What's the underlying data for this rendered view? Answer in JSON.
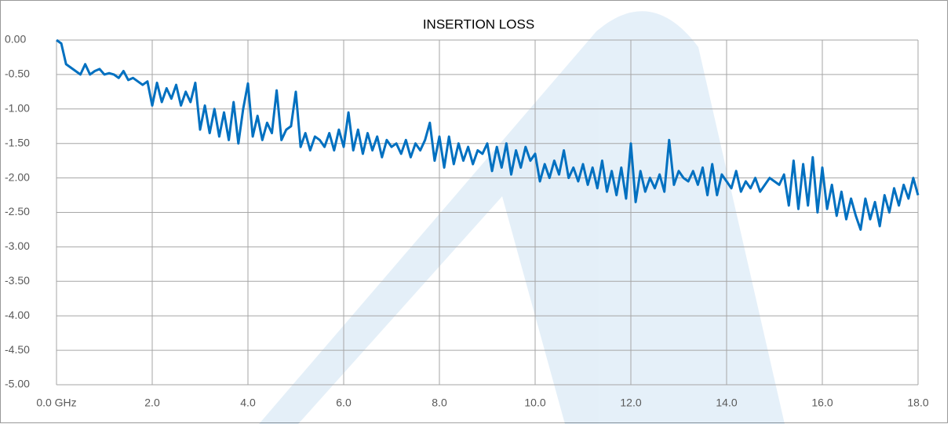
{
  "chart_data": {
    "type": "line",
    "title": "INSERTION LOSS",
    "x": [
      0,
      0.1,
      0.2,
      0.3,
      0.4,
      0.5,
      0.6,
      0.7,
      0.8,
      0.9,
      1,
      1.1,
      1.2,
      1.3,
      1.4,
      1.5,
      1.6,
      1.7,
      1.8,
      1.9,
      2,
      2.1,
      2.2,
      2.3,
      2.4,
      2.5,
      2.6,
      2.7,
      2.8,
      2.9,
      3,
      3.1,
      3.2,
      3.3,
      3.4,
      3.5,
      3.6,
      3.7,
      3.8,
      3.9,
      4,
      4.1,
      4.2,
      4.3,
      4.4,
      4.5,
      4.6,
      4.7,
      4.8,
      4.9,
      5,
      5.1,
      5.2,
      5.3,
      5.4,
      5.5,
      5.6,
      5.7,
      5.8,
      5.9,
      6,
      6.1,
      6.2,
      6.3,
      6.4,
      6.5,
      6.6,
      6.7,
      6.8,
      6.9,
      7,
      7.1,
      7.2,
      7.3,
      7.4,
      7.5,
      7.6,
      7.7,
      7.8,
      7.9,
      8,
      8.1,
      8.2,
      8.3,
      8.4,
      8.5,
      8.6,
      8.7,
      8.8,
      8.9,
      9,
      9.1,
      9.2,
      9.3,
      9.4,
      9.5,
      9.6,
      9.7,
      9.8,
      9.9,
      10,
      10.1,
      10.2,
      10.3,
      10.4,
      10.5,
      10.6,
      10.7,
      10.8,
      10.9,
      11,
      11.1,
      11.2,
      11.3,
      11.4,
      11.5,
      11.6,
      11.7,
      11.8,
      11.9,
      12,
      12.1,
      12.2,
      12.3,
      12.4,
      12.5,
      12.6,
      12.7,
      12.8,
      12.9,
      13,
      13.1,
      13.2,
      13.3,
      13.4,
      13.5,
      13.6,
      13.7,
      13.8,
      13.9,
      14,
      14.1,
      14.2,
      14.3,
      14.4,
      14.5,
      14.6,
      14.7,
      14.8,
      14.9,
      15,
      15.1,
      15.2,
      15.3,
      15.4,
      15.5,
      15.6,
      15.7,
      15.8,
      15.9,
      16,
      16.1,
      16.2,
      16.3,
      16.4,
      16.5,
      16.6,
      16.7,
      16.8,
      16.9,
      17,
      17.1,
      17.2,
      17.3,
      17.4,
      17.5,
      17.6,
      17.7,
      17.8,
      17.9,
      18
    ],
    "series": [
      {
        "color": "#0070c0",
        "values": [
          0,
          -0.05,
          -0.35,
          -0.4,
          -0.45,
          -0.5,
          -0.35,
          -0.5,
          -0.45,
          -0.42,
          -0.5,
          -0.48,
          -0.5,
          -0.55,
          -0.45,
          -0.58,
          -0.55,
          -0.6,
          -0.65,
          -0.6,
          -0.95,
          -0.62,
          -0.9,
          -0.7,
          -0.85,
          -0.65,
          -0.95,
          -0.75,
          -0.9,
          -0.62,
          -1.3,
          -0.95,
          -1.35,
          -1.0,
          -1.4,
          -1.05,
          -1.45,
          -0.9,
          -1.5,
          -1.0,
          -0.63,
          -1.4,
          -1.1,
          -1.45,
          -1.2,
          -1.35,
          -0.73,
          -1.45,
          -1.3,
          -1.25,
          -0.75,
          -1.55,
          -1.35,
          -1.6,
          -1.4,
          -1.45,
          -1.55,
          -1.35,
          -1.6,
          -1.3,
          -1.55,
          -1.05,
          -1.6,
          -1.3,
          -1.65,
          -1.35,
          -1.6,
          -1.4,
          -1.7,
          -1.45,
          -1.55,
          -1.5,
          -1.65,
          -1.45,
          -1.7,
          -1.5,
          -1.6,
          -1.45,
          -1.2,
          -1.75,
          -1.4,
          -1.85,
          -1.4,
          -1.8,
          -1.5,
          -1.75,
          -1.55,
          -1.8,
          -1.6,
          -1.65,
          -1.5,
          -1.9,
          -1.55,
          -1.85,
          -1.5,
          -1.95,
          -1.6,
          -1.85,
          -1.55,
          -1.75,
          -1.65,
          -2.05,
          -1.8,
          -2.0,
          -1.75,
          -1.95,
          -1.6,
          -2.0,
          -1.85,
          -2.05,
          -1.8,
          -2.1,
          -1.85,
          -2.15,
          -1.75,
          -2.2,
          -1.9,
          -2.25,
          -1.85,
          -2.3,
          -1.5,
          -2.35,
          -1.9,
          -2.2,
          -2.0,
          -2.15,
          -1.95,
          -2.2,
          -1.45,
          -2.1,
          -1.9,
          -2.0,
          -2.05,
          -1.9,
          -2.1,
          -1.85,
          -2.25,
          -1.8,
          -2.25,
          -1.95,
          -2.05,
          -2.15,
          -1.9,
          -2.2,
          -2.05,
          -2.15,
          -2.0,
          -2.2,
          -2.1,
          -2.0,
          -2.05,
          -2.1,
          -1.95,
          -2.4,
          -1.75,
          -2.45,
          -1.8,
          -2.4,
          -1.7,
          -2.5,
          -1.85,
          -2.45,
          -2.1,
          -2.55,
          -2.2,
          -2.6,
          -2.3,
          -2.55,
          -2.75,
          -2.3,
          -2.6,
          -2.35,
          -2.7,
          -2.25,
          -2.5,
          -2.15,
          -2.4,
          -2.1,
          -2.3,
          -2.0,
          -2.25
        ]
      }
    ],
    "xlim": [
      0,
      18
    ],
    "xticks": [
      {
        "value": 0,
        "label": "0.0 GHz"
      },
      {
        "value": 2,
        "label": "2.0"
      },
      {
        "value": 4,
        "label": "4.0"
      },
      {
        "value": 6,
        "label": "6.0"
      },
      {
        "value": 8,
        "label": "8.0"
      },
      {
        "value": 10,
        "label": "10.0"
      },
      {
        "value": 12,
        "label": "12.0"
      },
      {
        "value": 14,
        "label": "14.0"
      },
      {
        "value": 16,
        "label": "16.0"
      },
      {
        "value": 18,
        "label": "18.0"
      }
    ],
    "ylim": [
      -5,
      0
    ],
    "yticks": [
      {
        "value": 0,
        "label": "0.00"
      },
      {
        "value": -0.5,
        "label": "-0.50"
      },
      {
        "value": -1,
        "label": "-1.00"
      },
      {
        "value": -1.5,
        "label": "-1.50"
      },
      {
        "value": -2,
        "label": "-2.00"
      },
      {
        "value": -2.5,
        "label": "-2.50"
      },
      {
        "value": -3,
        "label": "-3.00"
      },
      {
        "value": -3.5,
        "label": "-3.50"
      },
      {
        "value": -4,
        "label": "-4.00"
      },
      {
        "value": -4.5,
        "label": "-4.50"
      },
      {
        "value": -5,
        "label": "-5.00"
      }
    ],
    "grid": true
  }
}
